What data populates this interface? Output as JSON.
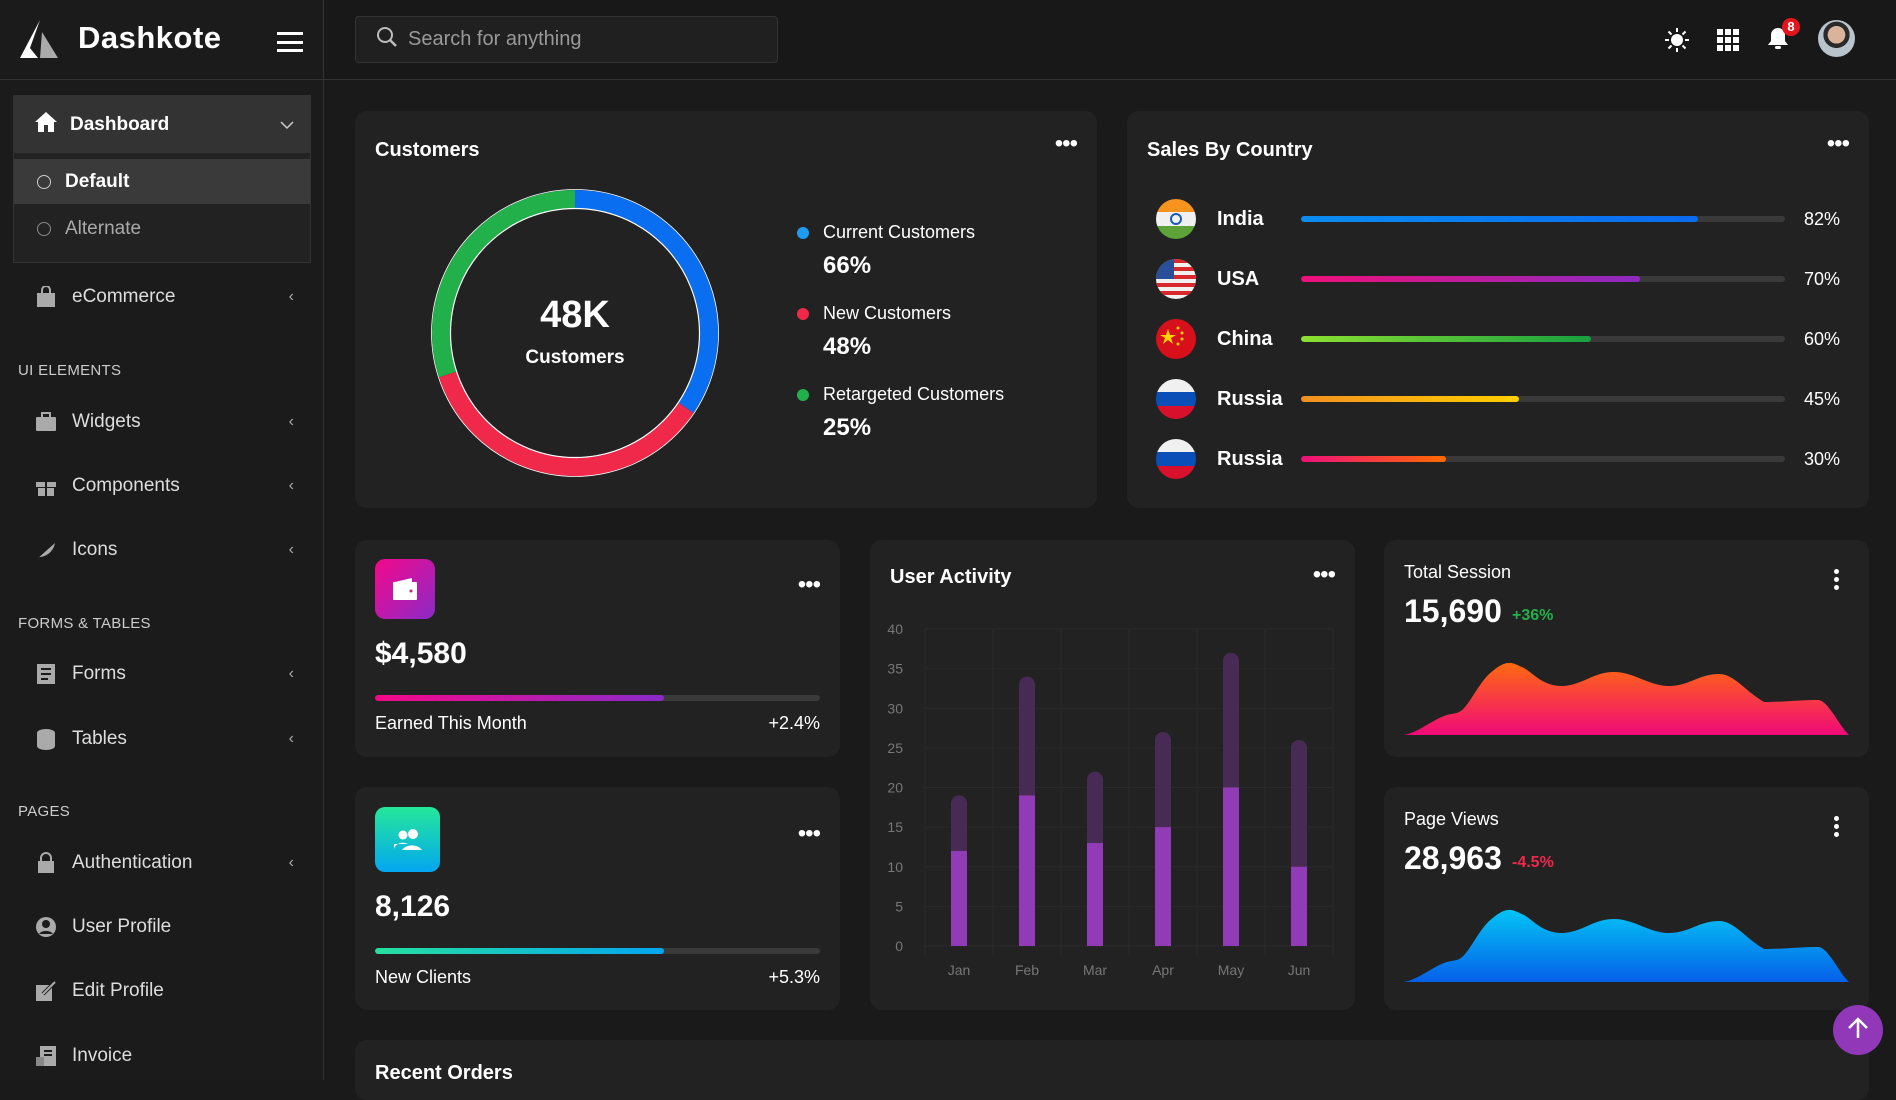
{
  "app": {
    "name": "Dashkote"
  },
  "header": {
    "search_placeholder": "Search for anything",
    "notification_count": "8",
    "icons": [
      "sun-icon",
      "grid-icon",
      "bell-icon",
      "avatar"
    ]
  },
  "sidebar": {
    "dashboard": {
      "label": "Dashboard",
      "children": [
        {
          "label": "Default",
          "active": true
        },
        {
          "label": "Alternate",
          "active": false
        }
      ]
    },
    "ecommerce": "eCommerce",
    "sections": {
      "ui": "UI ELEMENTS",
      "forms": "FORMS & TABLES",
      "pages": "PAGES"
    },
    "ui_items": [
      "Widgets",
      "Components",
      "Icons"
    ],
    "form_items": [
      "Forms",
      "Tables"
    ],
    "page_items": [
      "Authentication",
      "User Profile",
      "Edit Profile",
      "Invoice"
    ]
  },
  "customers": {
    "title": "Customers",
    "center_value": "48K",
    "center_label": "Customers",
    "legend": [
      {
        "label": "Current Customers",
        "value": "66%",
        "color": "#1e9bf0"
      },
      {
        "label": "New Customers",
        "value": "48%",
        "color": "#f0284a"
      },
      {
        "label": "Retargeted Customers",
        "value": "25%",
        "color": "#22b04b"
      }
    ]
  },
  "sales": {
    "title": "Sales By Country",
    "rows": [
      {
        "country": "India",
        "percent": 82,
        "label": "82%",
        "from": "#0a8cf0",
        "to": "#0b6bf0"
      },
      {
        "country": "USA",
        "percent": 70,
        "label": "70%",
        "from": "#f0107a",
        "to": "#8c2ac0"
      },
      {
        "country": "China",
        "percent": 60,
        "label": "60%",
        "from": "#8ce030",
        "to": "#18a040"
      },
      {
        "country": "Russia",
        "percent": 45,
        "label": "45%",
        "from": "#f39020",
        "to": "#ffd000"
      },
      {
        "country": "Russia",
        "percent": 30,
        "label": "30%",
        "from": "#f0107a",
        "to": "#ff6a00"
      }
    ]
  },
  "earned": {
    "value": "$4,580",
    "label": "Earned This Month",
    "change": "+2.4%",
    "progress": 65
  },
  "clients": {
    "value": "8,126",
    "label": "New Clients",
    "change": "+5.3%",
    "progress": 65
  },
  "user_activity": {
    "title": "User Activity"
  },
  "total_session": {
    "title": "Total Session",
    "value": "15,690",
    "change": "+36%",
    "change_color": "#22b04b"
  },
  "page_views": {
    "title": "Page Views",
    "value": "28,963",
    "change": "-4.5%",
    "change_color": "#f0284a"
  },
  "recent_orders": {
    "title": "Recent Orders"
  },
  "chart_data": {
    "type": "bar",
    "stacked": true,
    "categories": [
      "Jan",
      "Feb",
      "Mar",
      "Apr",
      "May",
      "Jun"
    ],
    "series": [
      {
        "values": [
          12,
          19,
          13,
          15,
          20,
          10
        ],
        "color": "#913cb6"
      },
      {
        "values": [
          7,
          15,
          9,
          12,
          17,
          16
        ],
        "color": "#472b55"
      }
    ],
    "ylim": [
      0,
      40
    ],
    "yticks": [
      0,
      5,
      10,
      15,
      20,
      25,
      30,
      35,
      40
    ],
    "grid": true
  }
}
